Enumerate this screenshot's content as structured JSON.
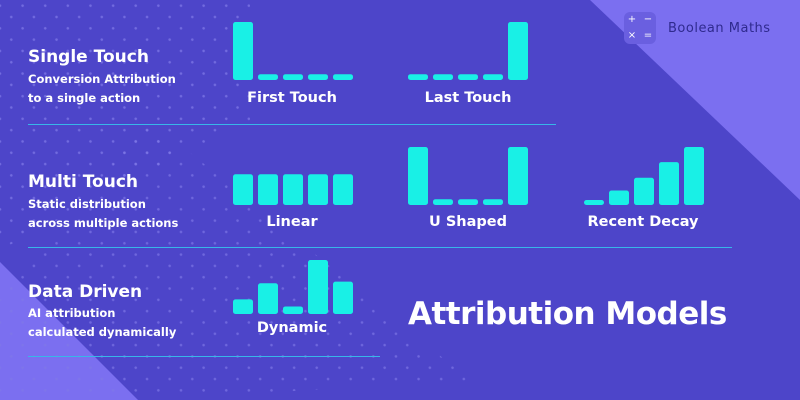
{
  "brand": {
    "name": "Boolean Maths",
    "logo_symbols": [
      "+",
      "−",
      "×",
      "="
    ]
  },
  "rows": [
    {
      "title": "Single Touch",
      "subtitle_lines": [
        "Conversion Attribution",
        "to a single action"
      ],
      "models": [
        {
          "label": "First Touch",
          "bar_values": [
            1,
            0.1,
            0.1,
            0.1,
            0.1
          ]
        },
        {
          "label": "Last Touch",
          "bar_values": [
            0.1,
            0.1,
            0.1,
            0.1,
            1
          ]
        }
      ]
    },
    {
      "title": "Multi Touch",
      "subtitle_lines": [
        "Static distribution",
        "across multiple actions"
      ],
      "models": [
        {
          "label": "Linear",
          "bar_values": [
            0.53,
            0.53,
            0.53,
            0.53,
            0.53
          ]
        },
        {
          "label": "U Shaped",
          "bar_values": [
            1,
            0.1,
            0.1,
            0.1,
            1
          ]
        },
        {
          "label": "Recent Decay",
          "bar_values": [
            0.04,
            0.25,
            0.47,
            0.74,
            1
          ]
        }
      ]
    },
    {
      "title": "Data Driven",
      "subtitle_lines": [
        "AI attribution",
        "calculated dynamically"
      ],
      "models": [
        {
          "label": "Dynamic",
          "bar_values": [
            0.27,
            0.57,
            0.14,
            1,
            0.6
          ]
        }
      ]
    }
  ],
  "main_title": "Attribution Models",
  "colors": {
    "background": "#4d45c9",
    "accent_panel": "#7b6ff0",
    "bar": "#19f0e6",
    "divider": "#38b6e8",
    "brand_text": "#2f2a8e"
  }
}
